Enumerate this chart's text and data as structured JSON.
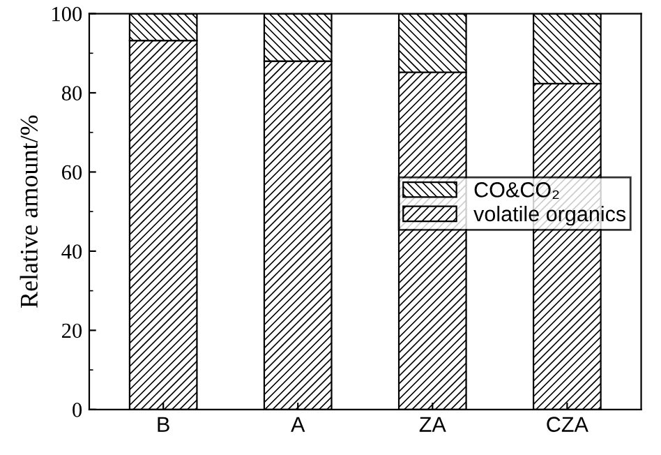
{
  "chart_data": {
    "type": "bar",
    "stacked": true,
    "ylabel": "Relative amount/%",
    "categories": [
      "B",
      "A",
      "ZA",
      "CZA"
    ],
    "series": [
      {
        "name": "volatile organics",
        "color": "#000000",
        "values": [
          93.2,
          88.0,
          85.2,
          82.3
        ]
      },
      {
        "name": "CO&CO₂",
        "color": "#000000",
        "values": [
          6.8,
          12.0,
          14.8,
          17.7
        ]
      }
    ],
    "ylim": [
      0,
      100
    ],
    "yticks": [
      0,
      20,
      40,
      60,
      80,
      100
    ],
    "grid": false,
    "legend": "right"
  }
}
